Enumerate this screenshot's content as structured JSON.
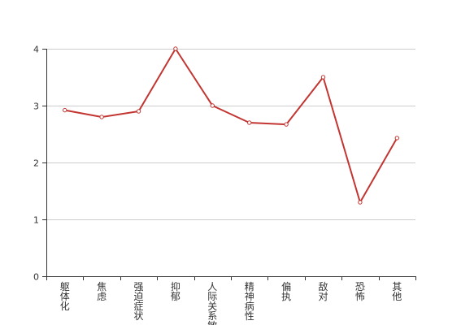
{
  "chart_data": {
    "type": "line",
    "categories": [
      "躯体化",
      "焦虑",
      "强迫症状",
      "抑郁",
      "人际关系敏感",
      "精神病性",
      "偏执",
      "敌对",
      "恐怖",
      "其他"
    ],
    "series": [
      {
        "values": [
          2.92,
          2.8,
          2.9,
          4.0,
          3.0,
          2.7,
          2.67,
          3.5,
          1.3,
          2.43
        ],
        "color": "#c23531"
      }
    ],
    "xlabel": "",
    "ylabel": "",
    "ylim": [
      0,
      4
    ],
    "yticks": [
      0,
      1,
      2,
      3,
      4
    ],
    "grid": true,
    "legend": "none",
    "x_label_orientation": "vertical"
  }
}
